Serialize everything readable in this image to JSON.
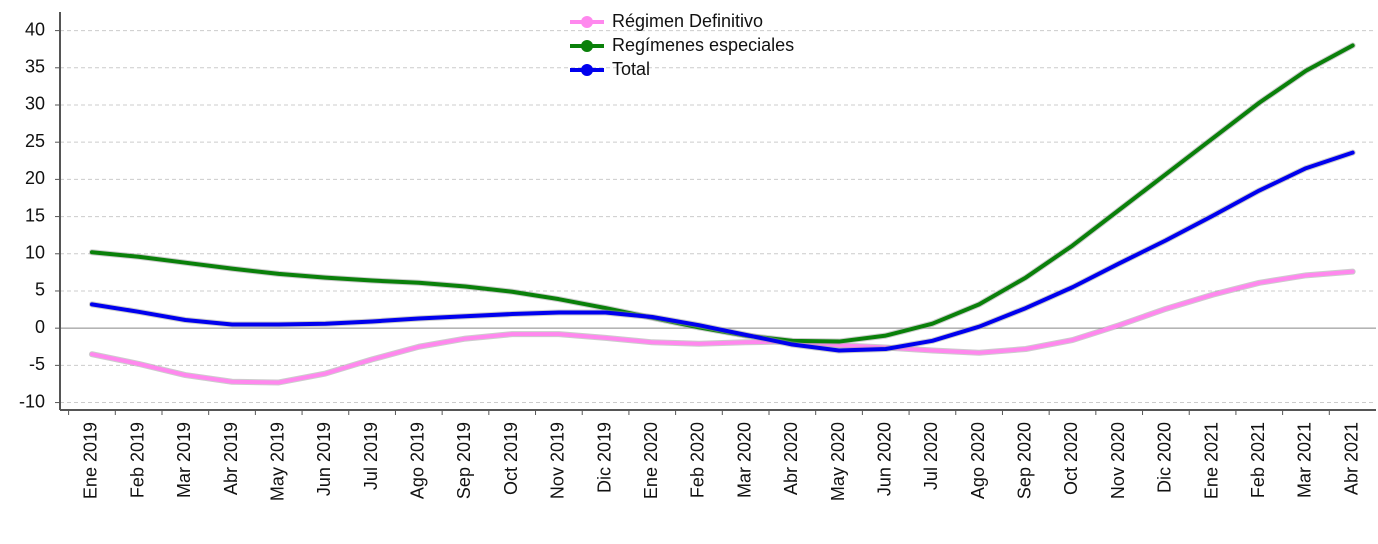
{
  "chart_data": {
    "type": "line",
    "categories": [
      "Ene 2019",
      "Feb 2019",
      "Mar 2019",
      "Abr 2019",
      "May 2019",
      "Jun 2019",
      "Jul 2019",
      "Ago 2019",
      "Sep 2019",
      "Oct 2019",
      "Nov 2019",
      "Dic 2019",
      "Ene 2020",
      "Feb 2020",
      "Mar 2020",
      "Abr 2020",
      "May 2020",
      "Jun 2020",
      "Jul 2020",
      "Ago 2020",
      "Sep 2020",
      "Oct 2020",
      "Nov 2020",
      "Dic 2020",
      "Ene 2021",
      "Feb 2021",
      "Mar 2021",
      "Abr 2021"
    ],
    "series": [
      {
        "name": "Régimen Definitivo",
        "color": "#ff88ee",
        "values": [
          -3.5,
          -4.8,
          -6.3,
          -7.2,
          -7.3,
          -6.1,
          -4.2,
          -2.5,
          -1.4,
          -0.8,
          -0.8,
          -1.3,
          -1.9,
          -2.1,
          -1.9,
          -1.8,
          -2.3,
          -2.6,
          -3.0,
          -3.3,
          -2.8,
          -1.6,
          0.4,
          2.6,
          4.5,
          6.1,
          7.1,
          7.6
        ]
      },
      {
        "name": "Regímenes especiales",
        "color": "#0a800a",
        "values": [
          10.2,
          9.6,
          8.8,
          8.0,
          7.3,
          6.8,
          6.4,
          6.1,
          5.6,
          4.9,
          3.9,
          2.7,
          1.4,
          0.1,
          -1.0,
          -1.7,
          -1.8,
          -1.0,
          0.6,
          3.2,
          6.8,
          11.1,
          15.9,
          20.7,
          25.5,
          30.3,
          34.6,
          38.0
        ]
      },
      {
        "name": "Total",
        "color": "#0000ee",
        "values": [
          3.2,
          2.2,
          1.1,
          0.5,
          0.5,
          0.6,
          0.9,
          1.3,
          1.6,
          1.9,
          2.1,
          2.1,
          1.5,
          0.4,
          -0.9,
          -2.2,
          -3.0,
          -2.8,
          -1.7,
          0.2,
          2.7,
          5.5,
          8.7,
          11.8,
          15.1,
          18.5,
          21.5,
          23.6
        ]
      }
    ],
    "ylim": [
      -11,
      42.5
    ],
    "yticks": [
      -10,
      -5,
      0,
      5,
      10,
      15,
      20,
      25,
      30,
      35,
      40
    ],
    "grid": true,
    "legend": "top"
  }
}
